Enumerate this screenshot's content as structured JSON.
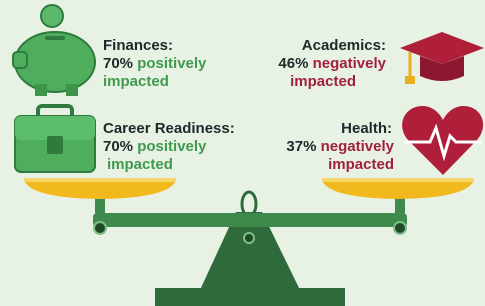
{
  "items": [
    {
      "label": "Finances:",
      "percent": "70%",
      "effect": "positively",
      "impact": "impacted"
    },
    {
      "label": "Career Readiness:",
      "percent": "70%",
      "effect": "positively",
      "impact": "impacted"
    },
    {
      "label": "Academics:",
      "percent": "46%",
      "effect": "negatively",
      "impact": "impacted"
    },
    {
      "label": "Health:",
      "percent": "37%",
      "effect": "negatively",
      "impact": "impacted"
    }
  ]
}
